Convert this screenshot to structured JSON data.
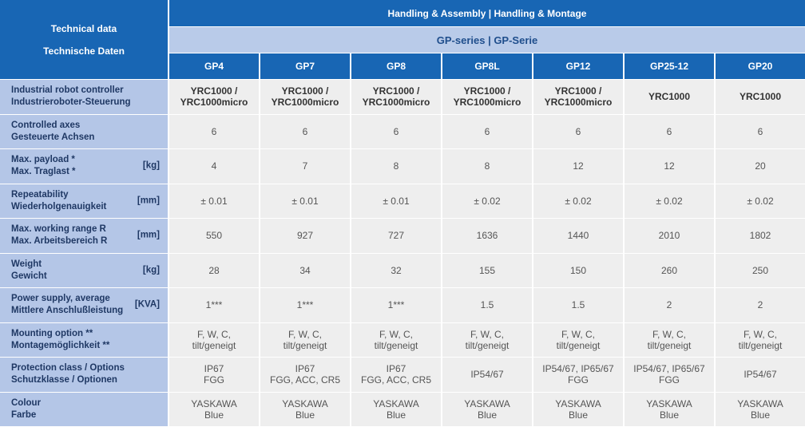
{
  "header": {
    "title": [
      "Technical data",
      "Technische Daten"
    ],
    "group": "Handling & Assembly | Handling & Montage",
    "series": "GP-series | GP-Serie",
    "models": [
      "GP4",
      "GP7",
      "GP8",
      "GP8L",
      "GP12",
      "GP25-12",
      "GP20"
    ]
  },
  "rows": [
    {
      "label": [
        "Industrial robot controller",
        "Industrieroboter-Steuerung"
      ],
      "cells": [
        [
          "YRC1000 /",
          "YRC1000micro"
        ],
        [
          "YRC1000 /",
          "YRC1000micro"
        ],
        [
          "YRC1000 /",
          "YRC1000micro"
        ],
        [
          "YRC1000 /",
          "YRC1000micro"
        ],
        [
          "YRC1000 /",
          "YRC1000micro"
        ],
        [
          "YRC1000"
        ],
        [
          "YRC1000"
        ]
      ]
    },
    {
      "label": [
        "Controlled axes",
        "Gesteuerte Achsen"
      ],
      "cells": [
        [
          "6"
        ],
        [
          "6"
        ],
        [
          "6"
        ],
        [
          "6"
        ],
        [
          "6"
        ],
        [
          "6"
        ],
        [
          "6"
        ]
      ]
    },
    {
      "label": [
        "Max. payload *",
        "Max. Traglast *"
      ],
      "unit": "[kg]",
      "cells": [
        [
          "4"
        ],
        [
          "7"
        ],
        [
          "8"
        ],
        [
          "8"
        ],
        [
          "12"
        ],
        [
          "12"
        ],
        [
          "20"
        ]
      ]
    },
    {
      "label": [
        "Repeatability",
        "Wiederholgenauigkeit"
      ],
      "unit": "[mm]",
      "cells": [
        [
          "± 0.01"
        ],
        [
          "± 0.01"
        ],
        [
          "± 0.01"
        ],
        [
          "± 0.02"
        ],
        [
          "± 0.02"
        ],
        [
          "± 0.02"
        ],
        [
          "± 0.02"
        ]
      ]
    },
    {
      "label": [
        "Max. working range R",
        "Max. Arbeitsbereich R"
      ],
      "unit": "[mm]",
      "cells": [
        [
          "550"
        ],
        [
          "927"
        ],
        [
          "727"
        ],
        [
          "1636"
        ],
        [
          "1440"
        ],
        [
          "2010"
        ],
        [
          "1802"
        ]
      ]
    },
    {
      "label": [
        "Weight",
        "Gewicht"
      ],
      "unit": "[kg]",
      "cells": [
        [
          "28"
        ],
        [
          "34"
        ],
        [
          "32"
        ],
        [
          "155"
        ],
        [
          "150"
        ],
        [
          "260"
        ],
        [
          "250"
        ]
      ]
    },
    {
      "label": [
        "Power supply, average",
        "Mittlere Anschlußleistung"
      ],
      "unit": "[KVA]",
      "cells": [
        [
          "1***"
        ],
        [
          "1***"
        ],
        [
          "1***"
        ],
        [
          "1.5"
        ],
        [
          "1.5"
        ],
        [
          "2"
        ],
        [
          "2"
        ]
      ]
    },
    {
      "label": [
        "Mounting option **",
        "Montagemöglichkeit **"
      ],
      "cells": [
        [
          "F, W, C,",
          "tilt/geneigt"
        ],
        [
          "F, W, C,",
          "tilt/geneigt"
        ],
        [
          "F, W, C,",
          "tilt/geneigt"
        ],
        [
          "F, W, C,",
          "tilt/geneigt"
        ],
        [
          "F, W, C,",
          "tilt/geneigt"
        ],
        [
          "F, W, C,",
          "tilt/geneigt"
        ],
        [
          "F, W, C,",
          "tilt/geneigt"
        ]
      ]
    },
    {
      "label": [
        "Protection class / Options",
        "Schutzklasse / Optionen"
      ],
      "cells": [
        [
          "IP67",
          "FGG"
        ],
        [
          "IP67",
          "FGG, ACC, CR5"
        ],
        [
          "IP67",
          "FGG, ACC, CR5"
        ],
        [
          "IP54/67"
        ],
        [
          "IP54/67, IP65/67",
          "FGG"
        ],
        [
          "IP54/67, IP65/67",
          "FGG"
        ],
        [
          "IP54/67"
        ]
      ]
    },
    {
      "label": [
        "Colour",
        "Farbe"
      ],
      "cells": [
        [
          "YASKAWA",
          "Blue"
        ],
        [
          "YASKAWA",
          "Blue"
        ],
        [
          "YASKAWA",
          "Blue"
        ],
        [
          "YASKAWA",
          "Blue"
        ],
        [
          "YASKAWA",
          "Blue"
        ],
        [
          "YASKAWA",
          "Blue"
        ],
        [
          "YASKAWA",
          "Blue"
        ]
      ]
    }
  ]
}
